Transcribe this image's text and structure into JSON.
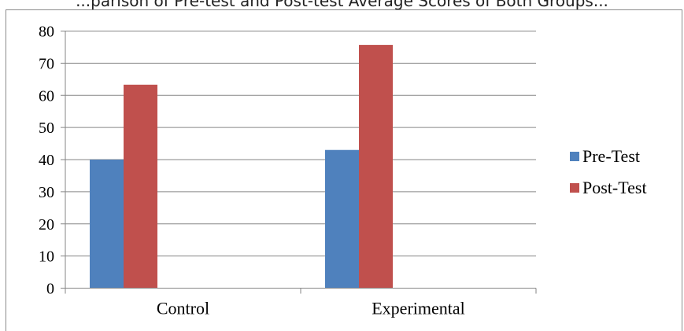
{
  "caption_fragment": "...parison of Pre-test and Post-test Average Scores of Both Groups...",
  "chart_data": {
    "type": "bar",
    "categories": [
      "Control",
      "Experimental"
    ],
    "series": [
      {
        "name": "Pre-Test",
        "values": [
          40,
          43
        ],
        "color": "#4f81bd"
      },
      {
        "name": "Post-Test",
        "values": [
          63.3,
          75.7
        ],
        "color": "#c0504d"
      }
    ],
    "ylim": [
      0,
      80
    ],
    "yticks": [
      0,
      10,
      20,
      30,
      40,
      50,
      60,
      70,
      80
    ],
    "grid": true,
    "legend_position": "right"
  }
}
